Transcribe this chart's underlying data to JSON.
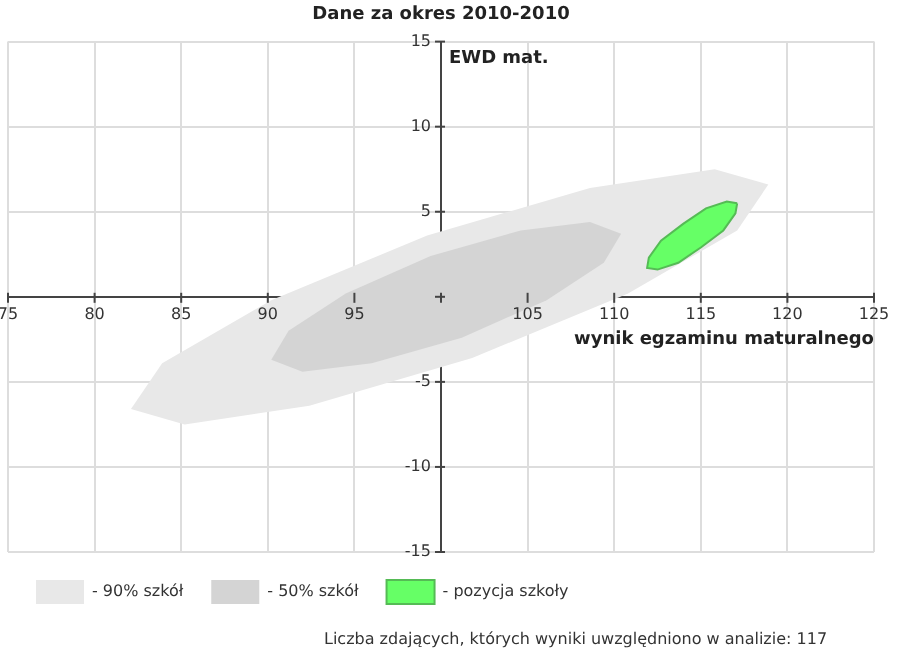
{
  "chart_data": {
    "type": "area",
    "title": "Dane za okres 2010-2010",
    "xlabel": "wynik egzaminu maturalnego",
    "ylabel": "EWD mat.",
    "xlim": [
      75,
      125
    ],
    "ylim": [
      -15,
      15
    ],
    "xticks": [
      75,
      80,
      85,
      90,
      95,
      {
        "value": 100,
        "label": null
      },
      105,
      110,
      115,
      120,
      125
    ],
    "yticks": [
      -15,
      -10,
      -5,
      {
        "value": 0,
        "label": null
      },
      5,
      10,
      15
    ],
    "grid": true,
    "legend": "bottom",
    "marker": "none",
    "series": [
      {
        "name": "- 90% szkół",
        "color": "#e8e8e8",
        "x": [
          118.9,
          115.8,
          108.6,
          99.2,
          90.2,
          83.9,
          82.1,
          85.2,
          92.4,
          101.8,
          110.8,
          117.1,
          118.9
        ],
        "values": [
          6.6,
          7.5,
          6.4,
          3.6,
          -0.2,
          -3.9,
          -6.6,
          -7.5,
          -6.4,
          -3.6,
          0.2,
          3.9,
          6.6
        ]
      },
      {
        "name": "- 50% szkół",
        "color": "#d4d4d4",
        "x": [
          110.4,
          108.6,
          104.6,
          99.4,
          94.5,
          91.2,
          90.2,
          92.0,
          96.0,
          101.2,
          106.1,
          109.4,
          110.4
        ],
        "values": [
          3.7,
          4.4,
          3.9,
          2.4,
          0.2,
          -2.0,
          -3.7,
          -4.4,
          -3.9,
          -2.4,
          -0.2,
          2.0,
          3.7
        ]
      },
      {
        "name": "- pozycja szkoły",
        "color": "#66ff66",
        "x": [
          117.1,
          116.5,
          115.3,
          114.0,
          112.7,
          112.0,
          111.9,
          112.5,
          113.7,
          115.0,
          116.3,
          117.0,
          117.1
        ],
        "values": [
          5.5,
          5.6,
          5.2,
          4.3,
          3.3,
          2.3,
          1.7,
          1.6,
          2.0,
          2.9,
          3.9,
          4.9,
          5.5
        ]
      }
    ],
    "annotations": [
      "Liczba zdających, których wyniki uwzględniono w analizie: 117"
    ]
  }
}
